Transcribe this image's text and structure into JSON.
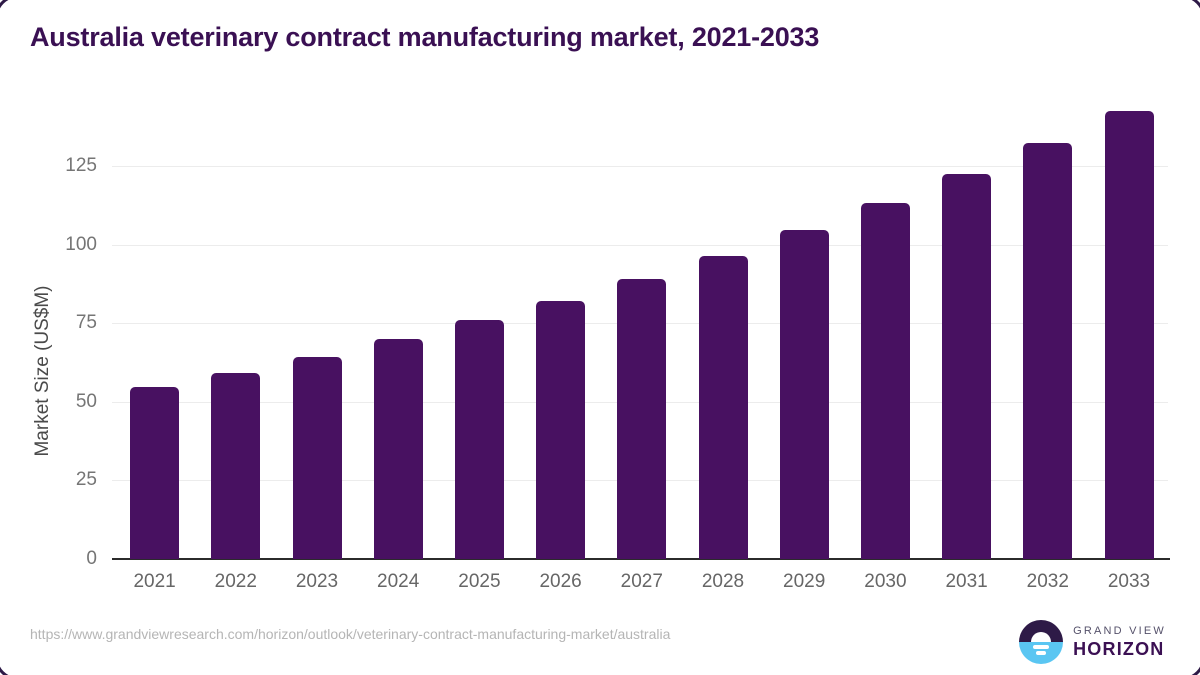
{
  "page_title": "Australia veterinary contract manufacturing market, 2021-2033",
  "chart_data": {
    "type": "bar",
    "title": "Australia veterinary contract manufacturing market, 2021-2033",
    "categories": [
      "2021",
      "2022",
      "2023",
      "2024",
      "2025",
      "2026",
      "2027",
      "2028",
      "2029",
      "2030",
      "2031",
      "2032",
      "2033"
    ],
    "values": [
      54.7,
      59.2,
      64.4,
      69.9,
      76.0,
      82.2,
      89.2,
      96.5,
      104.5,
      113.1,
      122.3,
      132.2,
      142.6
    ],
    "xlabel": "",
    "ylabel": "Market Size (US$M)",
    "ylim": [
      0,
      143
    ],
    "yticks": [
      0,
      25,
      50,
      75,
      100,
      125
    ],
    "grid": true,
    "legend": false,
    "bar_color": "#481161"
  },
  "footer": {
    "source_url": "https://www.grandviewresearch.com/horizon/outlook/veterinary-contract-manufacturing-market/australia"
  },
  "logo": {
    "line1": "GRAND VIEW",
    "line2": "HORIZON"
  },
  "colors": {
    "title": "#3a1053",
    "bar": "#481161",
    "grid_line": "#ececec",
    "axis_line": "#2b2b2b",
    "tick_label": "#757575",
    "year_label": "#666666",
    "ylabel": "#4a4a4a",
    "url": "#b5b5b5",
    "logo_dark": "#2e1a47",
    "logo_blue": "#5ac6f2",
    "logo_text1": "#55516a",
    "logo_text2": "#3b1053"
  }
}
